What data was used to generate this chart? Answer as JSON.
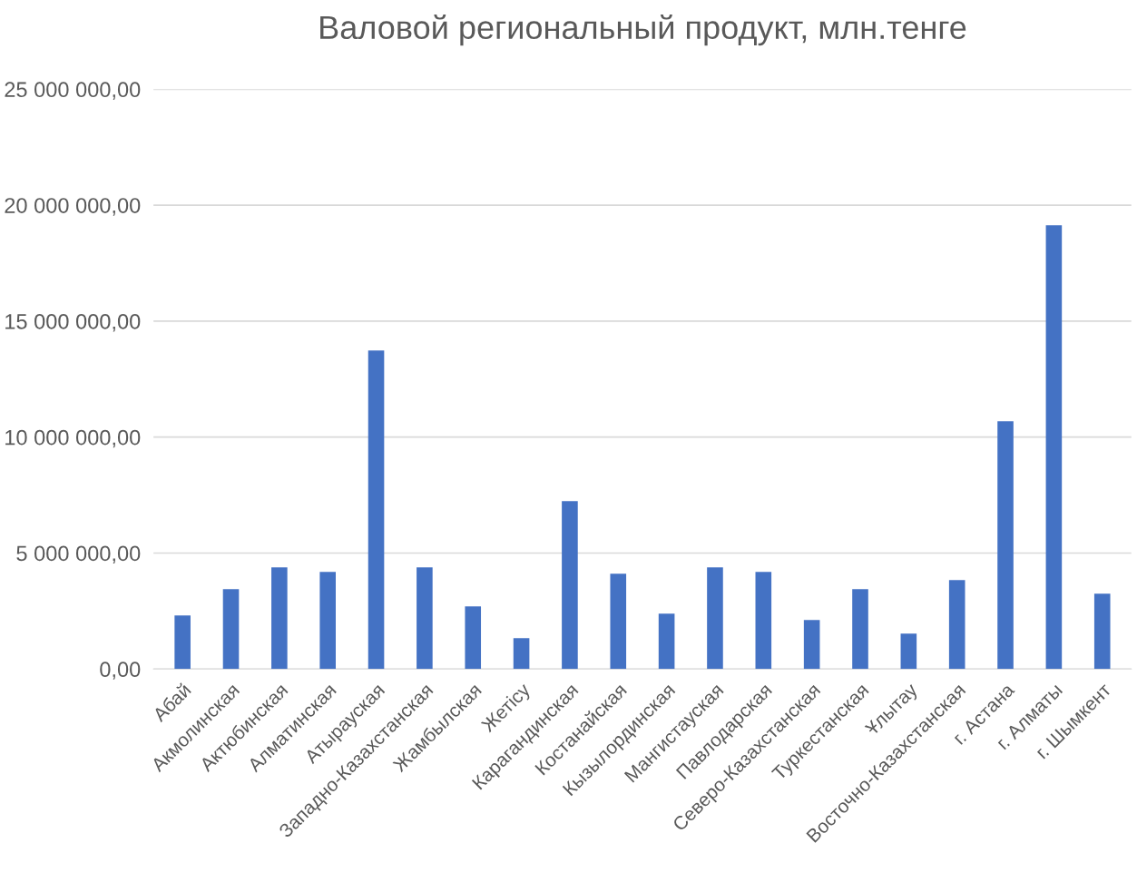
{
  "chart_data": {
    "type": "bar",
    "title": "Валовой региональный продукт, млн.тенге",
    "categories": [
      "Абай",
      "Акмолинская",
      "Актюбинская",
      "Алматинская",
      "Атырауская",
      "Западно-Казахстанская",
      "Жамбылская",
      "Жетісу",
      "Карагандинская",
      "Костанайская",
      "Кызылординская",
      "Мангистауская",
      "Павлодарская",
      "Северо-Казахстанская",
      "Туркестанская",
      "Ұлытау",
      "Восточно-Казахстанская",
      "г. Астана",
      "г. Алматы",
      "г. Шымкент"
    ],
    "values": [
      2310000,
      3440000,
      4380000,
      4190000,
      13730000,
      4380000,
      2700000,
      1330000,
      7240000,
      4110000,
      2390000,
      4380000,
      4190000,
      2110000,
      3440000,
      1530000,
      3830000,
      10680000,
      19130000,
      3250000
    ],
    "color": "#4472c4",
    "ylim": [
      0,
      25000000
    ],
    "yticks": [
      {
        "value": 0,
        "label": "0,00"
      },
      {
        "value": 5000000,
        "label": "5 000 000,00"
      },
      {
        "value": 10000000,
        "label": "10 000 000,00"
      },
      {
        "value": 15000000,
        "label": "15 000 000,00"
      },
      {
        "value": 20000000,
        "label": "20 000 000,00"
      },
      {
        "value": 25000000,
        "label": "25 000 000,00"
      }
    ],
    "grid": "y"
  }
}
